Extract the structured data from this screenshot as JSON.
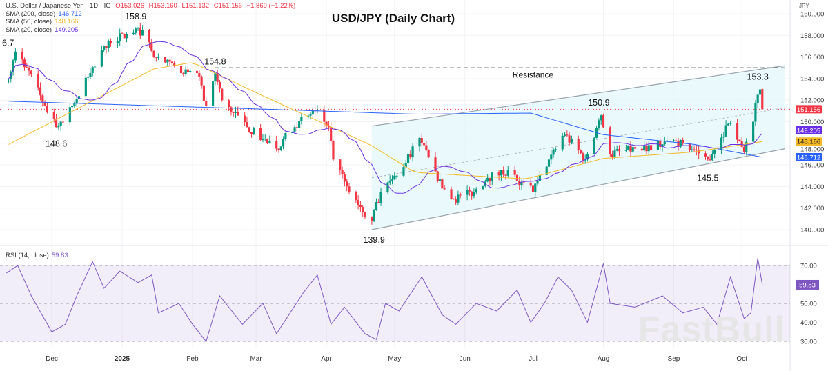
{
  "header": {
    "symbol": "U.S. Dollar / Japanese Yen · 1D · IG",
    "open": "O153.026",
    "high": "H153.160",
    "low": "L151.132",
    "close": "C151.156",
    "change": "−1.869 (−1.22%)",
    "sma200_label": "SMA (200, close)",
    "sma200_value": "146.712",
    "sma50_label": "SMA (50, close)",
    "sma50_value": "148.166",
    "sma20_label": "SMA (20, close)",
    "sma20_value": "149.205",
    "rsi_label": "RSI (14, close)",
    "rsi_value": "59.83",
    "currency": "JPY",
    "watermark": "FastBull"
  },
  "chart_data": {
    "type": "candlestick",
    "title": "USD/JPY (Daily Chart)",
    "ylim": [
      139,
      161
    ],
    "yticks": [
      140,
      142,
      144,
      146,
      148,
      150,
      152,
      154,
      156,
      158,
      160
    ],
    "xticks": [
      {
        "label": "Dec",
        "date": "2024-12-01"
      },
      {
        "label": "2025",
        "date": "2025-01-01"
      },
      {
        "label": "Feb",
        "date": "2025-02-01"
      },
      {
        "label": "Mar",
        "date": "2025-03-01"
      },
      {
        "label": "Apr",
        "date": "2025-04-01"
      },
      {
        "label": "May",
        "date": "2025-05-01"
      },
      {
        "label": "Jun",
        "date": "2025-06-01"
      },
      {
        "label": "Jul",
        "date": "2025-07-01"
      },
      {
        "label": "Aug",
        "date": "2025-08-01"
      },
      {
        "label": "Sep",
        "date": "2025-09-01"
      },
      {
        "label": "Oct",
        "date": "2025-10-01"
      }
    ],
    "colors": {
      "up": "#089981",
      "down": "#f23645",
      "sma200": "#2962ff",
      "sma50": "#f5b927",
      "sma20": "#6a2fe6",
      "rsi": "#7e57c2",
      "channel": "#e3f7fb"
    },
    "close_path": [
      [
        "2024-11-12",
        154.0
      ],
      [
        "2024-11-15",
        156.5
      ],
      [
        "2024-11-20",
        155.0
      ],
      [
        "2024-11-28",
        151.5
      ],
      [
        "2024-12-03",
        149.5
      ],
      [
        "2024-12-10",
        151.5
      ],
      [
        "2024-12-18",
        154.5
      ],
      [
        "2024-12-26",
        157.5
      ],
      [
        "2025-01-10",
        158.5
      ],
      [
        "2025-01-15",
        156.0
      ],
      [
        "2025-01-20",
        155.5
      ],
      [
        "2025-01-27",
        154.5
      ],
      [
        "2025-02-03",
        154.5
      ],
      [
        "2025-02-07",
        151.5
      ],
      [
        "2025-02-11",
        154.5
      ],
      [
        "2025-02-14",
        152.0
      ],
      [
        "2025-02-25",
        149.5
      ],
      [
        "2025-03-10",
        147.5
      ],
      [
        "2025-03-18",
        149.5
      ],
      [
        "2025-03-27",
        151.0
      ],
      [
        "2025-04-02",
        149.5
      ],
      [
        "2025-04-04",
        146.5
      ],
      [
        "2025-04-10",
        144.0
      ],
      [
        "2025-04-21",
        140.8
      ],
      [
        "2025-04-25",
        143.5
      ],
      [
        "2025-05-02",
        145.0
      ],
      [
        "2025-05-12",
        148.5
      ],
      [
        "2025-05-20",
        144.5
      ],
      [
        "2025-05-27",
        142.8
      ],
      [
        "2025-06-05",
        143.5
      ],
      [
        "2025-06-11",
        144.8
      ],
      [
        "2025-06-20",
        145.5
      ],
      [
        "2025-06-24",
        144.5
      ],
      [
        "2025-07-01",
        143.5
      ],
      [
        "2025-07-08",
        146.5
      ],
      [
        "2025-07-15",
        148.8
      ],
      [
        "2025-07-24",
        146.5
      ],
      [
        "2025-07-31",
        150.6
      ],
      [
        "2025-08-04",
        147.0
      ],
      [
        "2025-08-15",
        147.5
      ],
      [
        "2025-09-02",
        148.2
      ],
      [
        "2025-09-10",
        147.4
      ],
      [
        "2025-09-16",
        146.5
      ],
      [
        "2025-09-25",
        149.8
      ],
      [
        "2025-10-02",
        147.2
      ],
      [
        "2025-10-06",
        150.0
      ],
      [
        "2025-10-08",
        152.5
      ],
      [
        "2025-10-09",
        153.0
      ],
      [
        "2025-10-10",
        151.156
      ]
    ],
    "sma200_path": [
      [
        "2024-11-12",
        151.9
      ],
      [
        "2025-02-28",
        151.2
      ],
      [
        "2025-05-10",
        150.7
      ],
      [
        "2025-06-30",
        150.8
      ],
      [
        "2025-08-01",
        148.8
      ],
      [
        "2025-09-10",
        147.9
      ],
      [
        "2025-10-10",
        146.712
      ]
    ],
    "sma50_path": [
      [
        "2024-11-12",
        147.9
      ],
      [
        "2025-01-15",
        154.9
      ],
      [
        "2025-02-01",
        155.5
      ],
      [
        "2025-03-05",
        152.3
      ],
      [
        "2025-04-20",
        147.9
      ],
      [
        "2025-05-10",
        145.3
      ],
      [
        "2025-06-28",
        144.7
      ],
      [
        "2025-08-01",
        146.6
      ],
      [
        "2025-09-10",
        147.2
      ],
      [
        "2025-10-10",
        148.166
      ]
    ],
    "current_price": 151.156,
    "resistance": {
      "label": "Resistance",
      "price": 155.0,
      "from": "2025-02-11",
      "to": "2025-10-20"
    },
    "channel": {
      "upper": [
        [
          "2025-04-21",
          149.6
        ],
        [
          "2025-10-20",
          155.2
        ]
      ],
      "lower": [
        [
          "2025-04-21",
          140.0
        ],
        [
          "2025-10-20",
          147.5
        ]
      ],
      "mid": [
        [
          "2025-04-21",
          144.8
        ],
        [
          "2025-10-20",
          151.3
        ]
      ]
    },
    "annotations": [
      {
        "text": "6.7",
        "date": "2024-11-10",
        "price": 157.3
      },
      {
        "text": "158.9",
        "date": "2025-01-07",
        "price": 159.5
      },
      {
        "text": "154.8",
        "date": "2025-02-11",
        "price": 155.3
      },
      {
        "text": "148.6",
        "date": "2024-12-03",
        "price": 147.7
      },
      {
        "text": "150.9",
        "date": "2025-07-30",
        "price": 151.5
      },
      {
        "text": "139.9",
        "date": "2025-04-22",
        "price": 138.8
      },
      {
        "text": "145.5",
        "date": "2025-09-16",
        "price": 144.5
      },
      {
        "text": "153.3",
        "date": "2025-10-08",
        "price": 153.9
      },
      {
        "text": "Resistance",
        "date": "2025-07-01",
        "price": 154.1
      }
    ],
    "axis_tags": [
      {
        "text": "151.156",
        "price": 151.156,
        "color": "#f23645"
      },
      {
        "text": "149.205",
        "price": 149.205,
        "color": "#6a2fe6"
      },
      {
        "text": "148.166",
        "price": 148.166,
        "color": "#f5b927"
      },
      {
        "text": "146.712",
        "price": 146.712,
        "color": "#2962ff"
      }
    ],
    "rsi": {
      "ylim": [
        25,
        78
      ],
      "yticks": [
        30,
        40,
        50,
        70
      ],
      "band": [
        30,
        70
      ],
      "current": {
        "text": "59.83",
        "value": 59.83
      },
      "path": [
        [
          "2024-11-11",
          66
        ],
        [
          "2024-11-16",
          70
        ],
        [
          "2024-11-22",
          54
        ],
        [
          "2024-12-01",
          35
        ],
        [
          "2024-12-07",
          39
        ],
        [
          "2024-12-12",
          54
        ],
        [
          "2024-12-19",
          72
        ],
        [
          "2024-12-24",
          58
        ],
        [
          "2024-12-31",
          67
        ],
        [
          "2025-01-08",
          61
        ],
        [
          "2025-01-14",
          65
        ],
        [
          "2025-01-17",
          45
        ],
        [
          "2025-01-26",
          50
        ],
        [
          "2025-02-01",
          39
        ],
        [
          "2025-02-07",
          30
        ],
        [
          "2025-02-13",
          54
        ],
        [
          "2025-02-23",
          39
        ],
        [
          "2025-03-04",
          50
        ],
        [
          "2025-03-10",
          34
        ],
        [
          "2025-03-22",
          56
        ],
        [
          "2025-03-28",
          65
        ],
        [
          "2025-04-03",
          39
        ],
        [
          "2025-04-09",
          48
        ],
        [
          "2025-04-18",
          34
        ],
        [
          "2025-04-23",
          31
        ],
        [
          "2025-04-27",
          50
        ],
        [
          "2025-05-03",
          46
        ],
        [
          "2025-05-13",
          64
        ],
        [
          "2025-05-22",
          44
        ],
        [
          "2025-05-28",
          39
        ],
        [
          "2025-06-06",
          50
        ],
        [
          "2025-06-15",
          46
        ],
        [
          "2025-06-24",
          57
        ],
        [
          "2025-06-30",
          40
        ],
        [
          "2025-07-06",
          50
        ],
        [
          "2025-07-12",
          64
        ],
        [
          "2025-07-18",
          57
        ],
        [
          "2025-07-25",
          40
        ],
        [
          "2025-08-01",
          71
        ],
        [
          "2025-08-04",
          50
        ],
        [
          "2025-08-15",
          48
        ],
        [
          "2025-08-27",
          54
        ],
        [
          "2025-09-05",
          45
        ],
        [
          "2025-09-14",
          48
        ],
        [
          "2025-09-20",
          39
        ],
        [
          "2025-09-26",
          64
        ],
        [
          "2025-10-02",
          42
        ],
        [
          "2025-10-05",
          45
        ],
        [
          "2025-10-08",
          74
        ],
        [
          "2025-10-10",
          59.83
        ]
      ]
    }
  }
}
